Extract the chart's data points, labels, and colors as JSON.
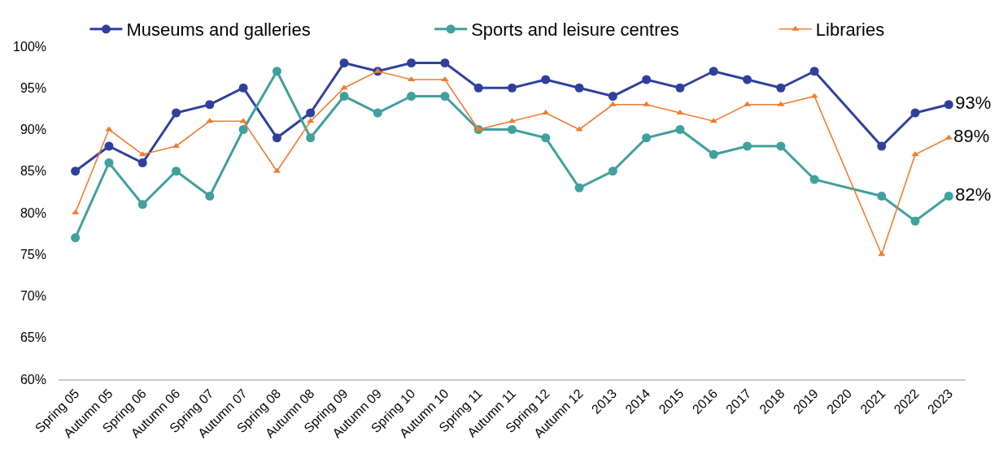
{
  "chart_data": {
    "type": "line",
    "categories": [
      "Spring 05",
      "Autumn 05",
      "Spring 06",
      "Autumn 06",
      "Spring 07",
      "Autumn 07",
      "Spring 08",
      "Autumn 08",
      "Spring 09",
      "Autumn 09",
      "Spring 10",
      "Autumn 10",
      "Spring 11",
      "Autumn 11",
      "Spring 12",
      "Autumn 12",
      "2013",
      "2014",
      "2015",
      "2016",
      "2017",
      "2018",
      "2019",
      "2020",
      "2021",
      "2022",
      "2023"
    ],
    "series": [
      {
        "name": "Museums and galleries",
        "color": "#2f409c",
        "marker": "circle",
        "values": [
          85,
          88,
          86,
          92,
          93,
          95,
          89,
          92,
          98,
          97,
          98,
          98,
          95,
          95,
          96,
          95,
          94,
          96,
          95,
          97,
          96,
          95,
          97,
          null,
          88,
          92,
          93
        ],
        "value_labels": [
          null,
          null,
          null,
          null,
          null,
          null,
          null,
          null,
          null,
          null,
          null,
          null,
          null,
          null,
          null,
          null,
          null,
          null,
          null,
          null,
          null,
          null,
          null,
          null,
          null,
          null,
          "93%"
        ]
      },
      {
        "name": "Sports and leisure centres",
        "color": "#40a09c",
        "marker": "circle",
        "values": [
          77,
          86,
          81,
          85,
          82,
          90,
          97,
          89,
          94,
          92,
          94,
          94,
          90,
          90,
          89,
          83,
          85,
          89,
          90,
          87,
          88,
          88,
          84,
          null,
          82,
          79,
          82
        ],
        "value_labels": [
          null,
          null,
          null,
          null,
          null,
          null,
          null,
          null,
          null,
          null,
          null,
          null,
          null,
          null,
          null,
          null,
          null,
          null,
          null,
          null,
          null,
          null,
          null,
          null,
          null,
          null,
          "82%"
        ]
      },
      {
        "name": "Libraries",
        "color": "#ed7d31",
        "marker": "triangle",
        "values": [
          80,
          90,
          87,
          88,
          91,
          91,
          85,
          91,
          95,
          97,
          96,
          96,
          90,
          91,
          92,
          90,
          93,
          93,
          92,
          91,
          93,
          93,
          94,
          null,
          75,
          87,
          89
        ],
        "value_labels": [
          null,
          null,
          null,
          null,
          null,
          null,
          null,
          null,
          null,
          null,
          null,
          null,
          null,
          null,
          null,
          null,
          null,
          null,
          null,
          null,
          null,
          null,
          null,
          null,
          null,
          null,
          "89%"
        ]
      }
    ],
    "ylim": [
      60,
      100
    ],
    "yticks": [
      {
        "value": 60,
        "label": "60%"
      },
      {
        "value": 65,
        "label": "65%"
      },
      {
        "value": 70,
        "label": "70%"
      },
      {
        "value": 75,
        "label": "75%"
      },
      {
        "value": 80,
        "label": "80%"
      },
      {
        "value": 85,
        "label": "85%"
      },
      {
        "value": 90,
        "label": "90%"
      },
      {
        "value": 95,
        "label": "95%"
      },
      {
        "value": 100,
        "label": "100%"
      }
    ],
    "grid": false,
    "legend": "top",
    "line_style": "solid"
  }
}
